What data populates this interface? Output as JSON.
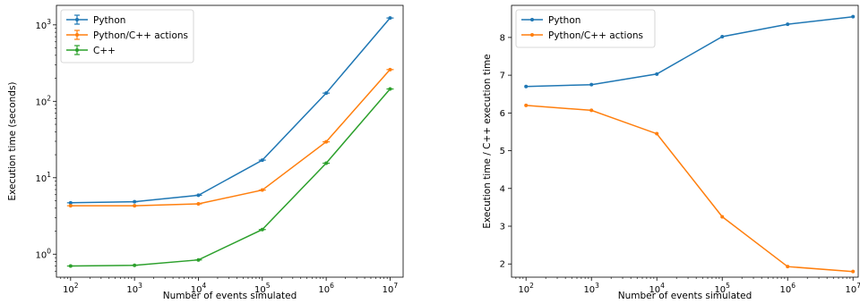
{
  "chart_data": [
    {
      "type": "line",
      "xscale": "log",
      "yscale": "log",
      "x": [
        100,
        1000,
        10000,
        100000,
        1000000,
        10000000
      ],
      "x_tick_labels": [
        [
          "10",
          "2"
        ],
        [
          "10",
          "3"
        ],
        [
          "10",
          "4"
        ],
        [
          "10",
          "5"
        ],
        [
          "10",
          "6"
        ],
        [
          "10",
          "7"
        ]
      ],
      "y_tick_labels": [
        [
          "10",
          "0"
        ],
        [
          "10",
          "1"
        ],
        [
          "10",
          "2"
        ],
        [
          "10",
          "3"
        ]
      ],
      "xlim": [
        60,
        16000000
      ],
      "ylim": [
        0.5,
        1800
      ],
      "xlabel": "Number of events simulated",
      "ylabel": "Execution time (seconds)",
      "error_bars": true,
      "legend": "top-left",
      "series": [
        {
          "name": "Python",
          "color": "#1f77b4",
          "values": [
            4.7,
            4.85,
            5.9,
            17.0,
            128,
            1230
          ]
        },
        {
          "name": "Python/C++ actions",
          "color": "#ff7f0e",
          "values": [
            4.3,
            4.3,
            4.55,
            6.9,
            29.5,
            260
          ]
        },
        {
          "name": "C++",
          "color": "#2ca02c",
          "values": [
            0.7,
            0.715,
            0.84,
            2.1,
            15.5,
            145
          ]
        }
      ]
    },
    {
      "type": "line",
      "xscale": "log",
      "yscale": "linear",
      "x": [
        100,
        1000,
        10000,
        100000,
        1000000,
        10000000
      ],
      "x_tick_labels": [
        [
          "10",
          "2"
        ],
        [
          "10",
          "3"
        ],
        [
          "10",
          "4"
        ],
        [
          "10",
          "5"
        ],
        [
          "10",
          "6"
        ],
        [
          "10",
          "7"
        ]
      ],
      "y_ticks": [
        2,
        3,
        4,
        5,
        6,
        7,
        8
      ],
      "y_tick_labels": [
        "2",
        "3",
        "4",
        "5",
        "6",
        "7",
        "8"
      ],
      "xlim": [
        60,
        12000000
      ],
      "ylim": [
        1.65,
        8.85
      ],
      "xlabel": "Number of events simulated",
      "ylabel": "Execution time / C++ execution time",
      "legend": "top-left",
      "series": [
        {
          "name": "Python",
          "color": "#1f77b4",
          "values": [
            6.7,
            6.75,
            7.03,
            8.02,
            8.35,
            8.55
          ]
        },
        {
          "name": "Python/C++ actions",
          "color": "#ff7f0e",
          "values": [
            6.2,
            6.07,
            5.45,
            3.25,
            1.93,
            1.8
          ]
        }
      ]
    }
  ]
}
